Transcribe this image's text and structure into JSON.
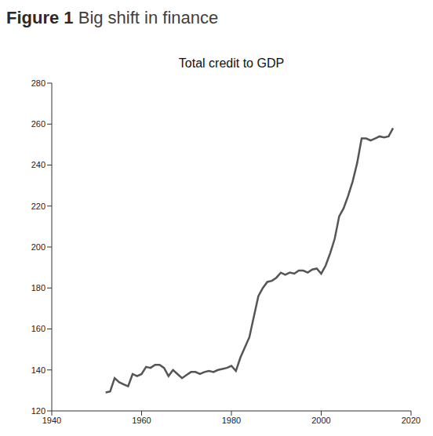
{
  "header": {
    "label": "Figure 1",
    "text": "Big shift in finance"
  },
  "chart_data": {
    "type": "line",
    "title": "Total credit to GDP",
    "x": [
      1952,
      1953,
      1954,
      1955,
      1956,
      1957,
      1958,
      1959,
      1960,
      1961,
      1962,
      1963,
      1964,
      1965,
      1966,
      1967,
      1968,
      1969,
      1970,
      1971,
      1972,
      1973,
      1974,
      1975,
      1976,
      1977,
      1978,
      1979,
      1980,
      1981,
      1982,
      1983,
      1984,
      1985,
      1986,
      1987,
      1988,
      1989,
      1990,
      1991,
      1992,
      1993,
      1994,
      1995,
      1996,
      1997,
      1998,
      1999,
      2000,
      2001,
      2002,
      2003,
      2004,
      2005,
      2006,
      2007,
      2008,
      2009,
      2010,
      2011,
      2012,
      2013,
      2014,
      2015,
      2016
    ],
    "values": [
      129,
      129.5,
      136,
      134,
      133,
      132,
      138,
      137,
      138,
      141.5,
      141,
      142.5,
      142.5,
      141,
      137,
      140,
      138,
      136,
      137.5,
      139,
      139,
      138,
      139,
      139.5,
      139,
      140,
      140.5,
      141,
      142,
      139.5,
      146,
      151,
      156,
      166,
      176,
      180,
      183,
      183.5,
      185,
      187.5,
      186.5,
      187.5,
      187,
      188.5,
      188.5,
      187.5,
      189,
      189.5,
      187,
      191,
      197,
      204,
      215,
      219,
      225,
      232,
      241,
      253,
      253,
      252,
      253,
      254,
      253.5,
      254,
      258
    ],
    "color": "#555555",
    "xlim": [
      1940,
      2020
    ],
    "xticks": [
      1940,
      1960,
      1980,
      2000,
      2020
    ],
    "ylim": [
      120,
      280
    ],
    "yticks": [
      120,
      140,
      160,
      180,
      200,
      220,
      240,
      260,
      280
    ],
    "grid": false
  }
}
